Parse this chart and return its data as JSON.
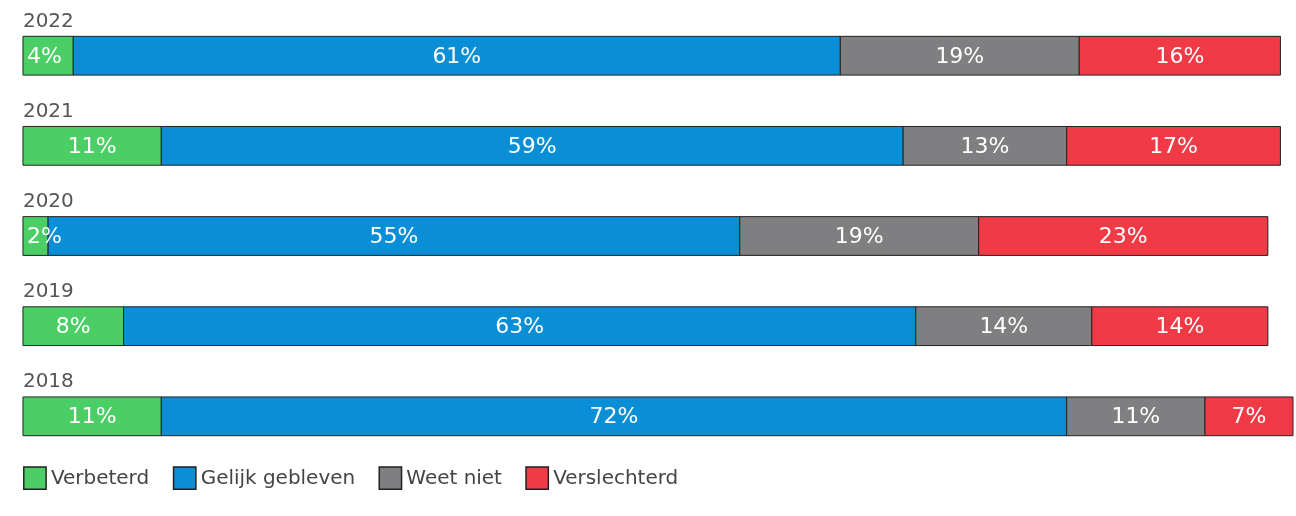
{
  "chart_data": {
    "type": "bar",
    "orientation": "horizontal",
    "stacked": true,
    "legend": "bottom left",
    "categories": [
      "2022",
      "2021",
      "2020",
      "2019",
      "2018"
    ],
    "series": [
      {
        "name": "Verbeterd",
        "color": "#4cce66",
        "values": [
          4,
          11,
          2,
          8,
          11
        ],
        "value_labels": [
          "4%",
          "11%",
          "2%",
          "8%",
          "11%"
        ]
      },
      {
        "name": "Gelijk gebleven",
        "color": "#0a8fd6",
        "values": [
          61,
          59,
          55,
          63,
          72
        ],
        "value_labels": [
          "61%",
          "59%",
          "55%",
          "63%",
          "72%"
        ]
      },
      {
        "name": "Weet niet",
        "color": "#7f7f82",
        "values": [
          19,
          13,
          19,
          14,
          11
        ],
        "value_labels": [
          "19%",
          "13%",
          "19%",
          "14%",
          "11%"
        ]
      },
      {
        "name": "Verslechterd",
        "color": "#f03a46",
        "values": [
          16,
          17,
          23,
          14,
          7
        ],
        "value_labels": [
          "16%",
          "17%",
          "23%",
          "14%",
          "7%"
        ]
      }
    ]
  }
}
